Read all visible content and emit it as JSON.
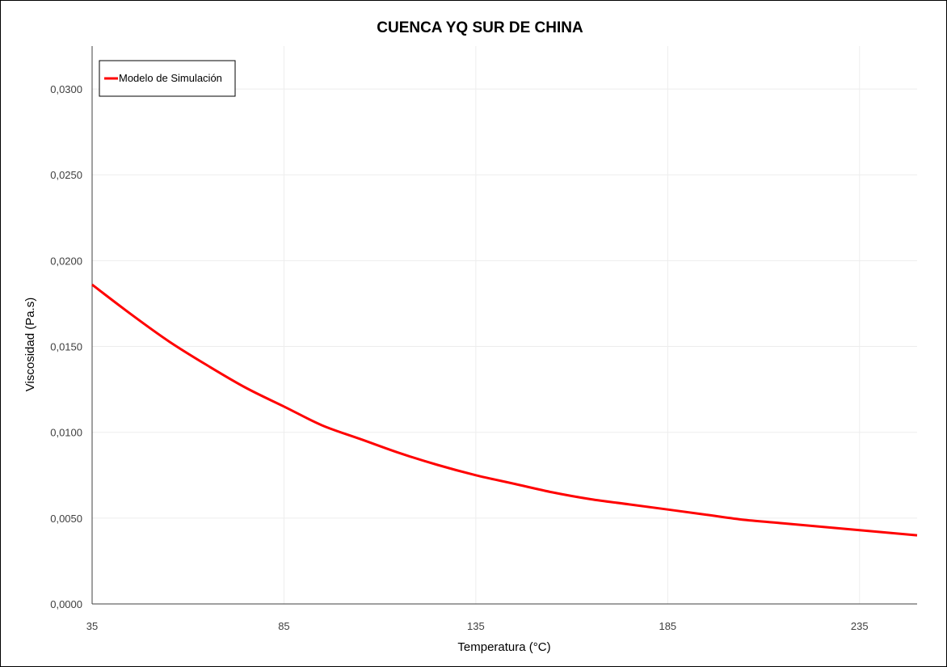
{
  "chart_data": {
    "type": "line",
    "title": "CUENCA YQ SUR DE CHINA",
    "xlabel": "Temperatura (°C)",
    "ylabel": "Viscosidad (Pa.s)",
    "xlim": [
      35,
      250
    ],
    "ylim": [
      0,
      0.0325
    ],
    "x_ticks": [
      35,
      85,
      135,
      185,
      235
    ],
    "x_tick_labels": [
      "35",
      "85",
      "135",
      "185",
      "235"
    ],
    "y_ticks": [
      0,
      0.005,
      0.01,
      0.015,
      0.02,
      0.025,
      0.03
    ],
    "y_tick_labels": [
      "0,0000",
      "0,0050",
      "0,0100",
      "0,0150",
      "0,0200",
      "0,0250",
      "0,0300"
    ],
    "grid": true,
    "legend_position": "top-left",
    "series": [
      {
        "name": "Modelo de Simulación",
        "color": "#ff0000",
        "x": [
          35,
          45,
          55,
          65,
          75,
          85,
          95,
          105,
          115,
          125,
          135,
          145,
          155,
          165,
          175,
          185,
          195,
          205,
          215,
          225,
          235,
          245,
          250
        ],
        "y": [
          0.0186,
          0.0169,
          0.0153,
          0.0139,
          0.0126,
          0.0115,
          0.0104,
          0.0096,
          0.0088,
          0.0081,
          0.0075,
          0.007,
          0.0065,
          0.0061,
          0.0058,
          0.0055,
          0.0052,
          0.0049,
          0.0047,
          0.0045,
          0.0043,
          0.0041,
          0.004
        ]
      }
    ]
  }
}
